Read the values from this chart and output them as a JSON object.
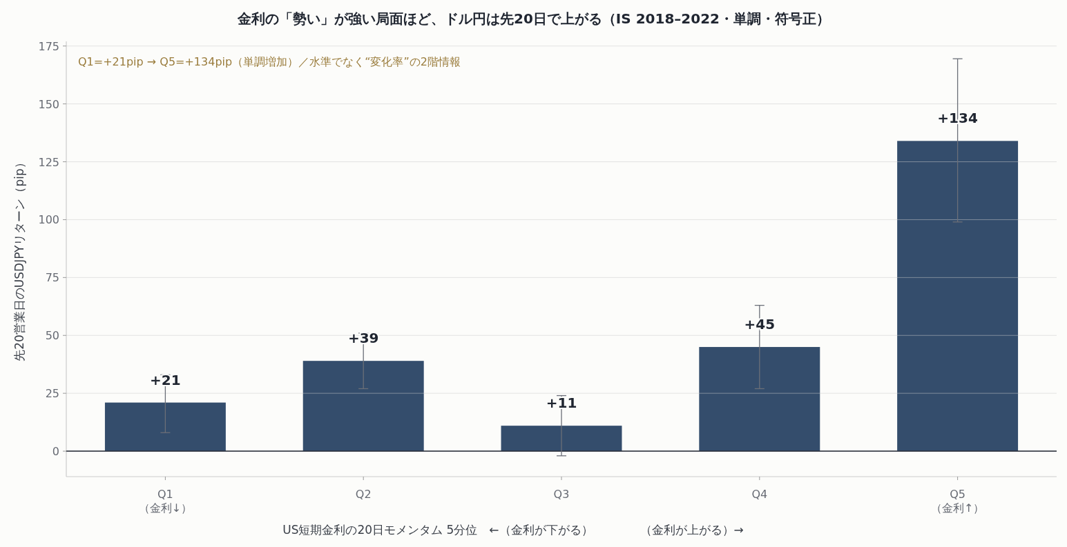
{
  "chart_data": {
    "type": "bar",
    "title": "金利の「勢い」が強い局面ほど、ドル円は先20日で上がる（IS 2018–2022・単調・符号正）",
    "xlabel": "US短期金利の20日モメンタム 5分位　←（金利が下がる）　　　　（金利が上がる）→",
    "ylabel": "先20営業日のUSDJPYリターン（pip）",
    "annotations": [
      "Q1=+21pip → Q5=+134pip（単調増加）／水準でなく“変化率”の2階情報"
    ],
    "categories": [
      "Q1\n（金利↓）",
      "Q2",
      "Q3",
      "Q4",
      "Q5\n（金利↑）"
    ],
    "values": [
      21,
      39,
      11,
      45,
      134
    ],
    "value_labels": [
      "+21",
      "+39",
      "+11",
      "+45",
      "+134"
    ],
    "errors": [
      [
        8,
        33
      ],
      [
        27,
        51
      ],
      [
        -2,
        24
      ],
      [
        27,
        63
      ],
      [
        99,
        169.5
      ]
    ],
    "color": "#344d6c",
    "ylim": [
      -11,
      177
    ],
    "yticks": [
      0,
      25,
      50,
      75,
      100,
      125,
      150,
      175
    ],
    "grid": "y",
    "ref_lines": [
      {
        "axis": "y",
        "value": 0,
        "color": "#1f2530"
      }
    ]
  }
}
